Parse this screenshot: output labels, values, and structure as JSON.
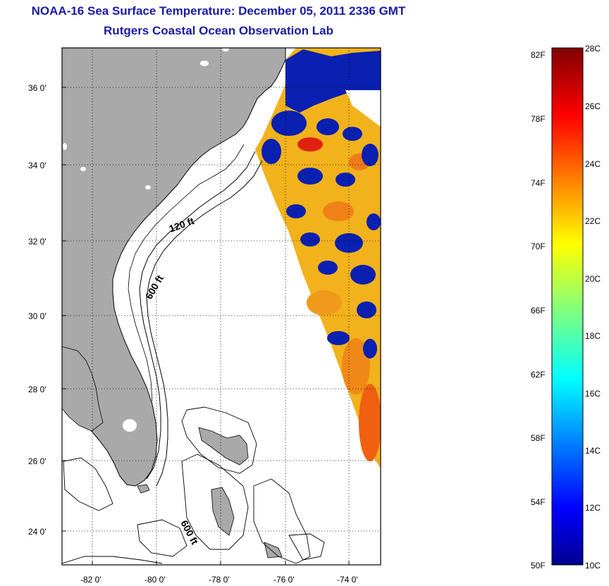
{
  "header": {
    "title": "NOAA-16 Sea Surface Temperature:  December 05, 2011 2336 GMT",
    "subtitle": "Rutgers Coastal Ocean Observation Lab"
  },
  "map": {
    "lon_range": [
      -83,
      -73
    ],
    "lat_range": [
      23,
      37
    ],
    "x_ticks": [
      "-82 0'",
      "-80 0'",
      "-78 0'",
      "-76 0'",
      "-74 0'"
    ],
    "y_ticks": [
      "36 0'",
      "34 0'",
      "32 0'",
      "30 0'",
      "28 0'",
      "26 0'",
      "24 0'"
    ],
    "grid": "dotted",
    "land_color": "#a9a9a9",
    "contour_labels": [
      "120 ft",
      "600 ft",
      "600 ft"
    ]
  },
  "colorbar": {
    "fahrenheit_labels": [
      "82F",
      "78F",
      "74F",
      "70F",
      "66F",
      "62F",
      "58F",
      "54F",
      "50F"
    ],
    "celsius_labels": [
      "28C",
      "26C",
      "24C",
      "22C",
      "20C",
      "18C",
      "16C",
      "14C",
      "12C",
      "10C"
    ],
    "range_c": [
      10,
      28
    ],
    "colormap": "jet"
  }
}
